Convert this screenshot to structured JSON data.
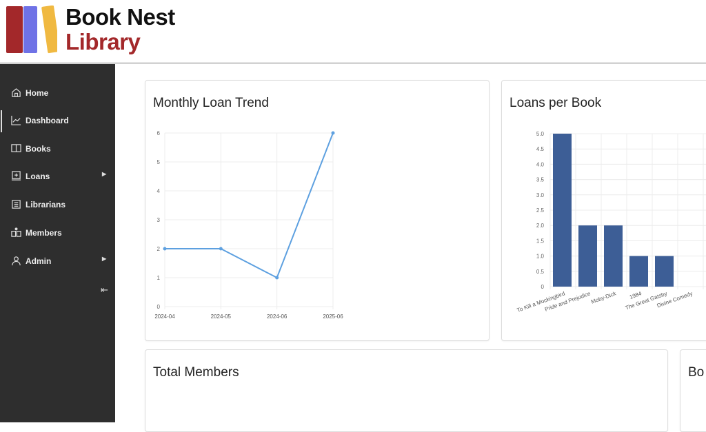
{
  "brand": {
    "line1": "Book Nest",
    "line2": "Library",
    "colors": [
      "#a3282a",
      "#6f72e6",
      "#f0b941"
    ]
  },
  "sidebar": {
    "items": [
      {
        "label": "Home",
        "icon": "home-icon"
      },
      {
        "label": "Dashboard",
        "icon": "chart-line-icon",
        "active": true
      },
      {
        "label": "Books",
        "icon": "book-open-icon"
      },
      {
        "label": "Loans",
        "icon": "loan-icon",
        "submenu": true
      },
      {
        "label": "Librarians",
        "icon": "list-icon"
      },
      {
        "label": "Members",
        "icon": "members-icon"
      },
      {
        "label": "Admin",
        "icon": "user-icon",
        "submenu": true
      }
    ],
    "collapse_icon": "collapse-left-icon"
  },
  "cards": {
    "monthly": "Monthly Loan Trend",
    "perbook": "Loans per Book",
    "members": "Total Members",
    "fourth": "Bo"
  },
  "chart_data": [
    {
      "type": "line",
      "title": "Monthly Loan Trend",
      "categories": [
        "2024-04",
        "2024-05",
        "2024-06",
        "2025-06"
      ],
      "values": [
        2,
        2,
        1,
        6
      ],
      "ylim": [
        0,
        6
      ],
      "yticks": [
        0,
        1,
        2,
        3,
        4,
        5,
        6
      ],
      "color": "#5da0e0",
      "grid": true
    },
    {
      "type": "bar",
      "title": "Loans per Book",
      "categories": [
        "To Kill a Mockingbird",
        "Pride and Prejudice",
        "Moby-Dick",
        "1984",
        "The Great Gatsby",
        "Divine Comedy"
      ],
      "values": [
        5,
        2,
        2,
        1,
        1,
        0
      ],
      "ylim": [
        0,
        5
      ],
      "yticks": [
        "0",
        "0.5",
        "1.0",
        "1.5",
        "2.0",
        "2.5",
        "3.0",
        "3.5",
        "4.0",
        "4.5",
        "5.0"
      ],
      "color": "#3d5e96",
      "grid": true
    }
  ]
}
